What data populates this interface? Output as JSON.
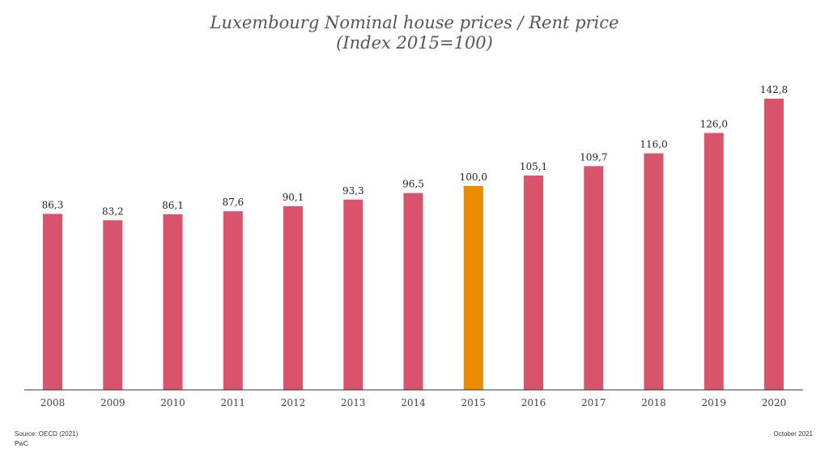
{
  "chart_data": {
    "type": "bar",
    "title": "Luxembourg Nominal house prices / Rent price",
    "subtitle": "(Index 2015=100)",
    "categories": [
      "2008",
      "2009",
      "2010",
      "2011",
      "2012",
      "2013",
      "2014",
      "2015",
      "2016",
      "2017",
      "2018",
      "2019",
      "2020"
    ],
    "values": [
      86.3,
      83.2,
      86.1,
      87.6,
      90.1,
      93.3,
      96.5,
      100.0,
      105.1,
      109.7,
      116.0,
      126.0,
      142.8
    ],
    "value_labels": [
      "86,3",
      "83,2",
      "86,1",
      "87,6",
      "90,1",
      "93,3",
      "96,5",
      "100,0",
      "105,1",
      "109,7",
      "116,0",
      "126,0",
      "142,8"
    ],
    "highlight_category": "2015",
    "xlabel": "",
    "ylabel": "",
    "ylim": [
      0,
      143
    ],
    "grid": false,
    "colors": {
      "bar": "#D9536C",
      "highlight": "#EB8C00",
      "axis": "#333333"
    }
  },
  "footer": {
    "source": "Source: OECD (2021)",
    "publisher": "PwC",
    "date": "October 2021"
  }
}
